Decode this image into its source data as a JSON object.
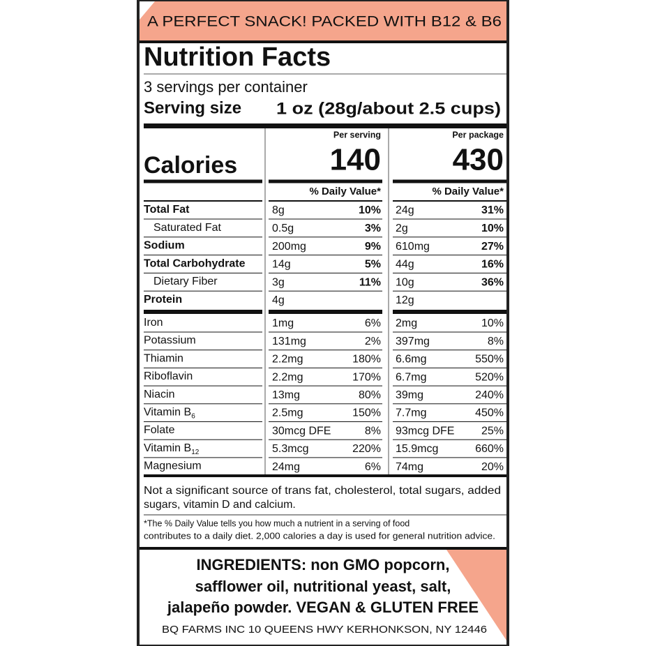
{
  "banner": "A PERFECT SNACK! PACKED WITH B12 & B6",
  "title": "Nutrition Facts",
  "servings": "3 servings per container",
  "serving_size": {
    "label": "Serving size",
    "value": "1 oz (28g/about 2.5 cups)"
  },
  "calories_label": "Calories",
  "columns": [
    {
      "header": "Per serving",
      "calories": "140",
      "dv_header": "% Daily Value*"
    },
    {
      "header": "Per package",
      "calories": "430",
      "dv_header": "% Daily Value*"
    }
  ],
  "macros": [
    {
      "name": "Total Fat",
      "bold": true,
      "cells": [
        [
          "8g",
          "10%"
        ],
        [
          "24g",
          "31%"
        ]
      ]
    },
    {
      "name": "Saturated Fat",
      "indent": true,
      "cells": [
        [
          "0.5g",
          "3%"
        ],
        [
          "2g",
          "10%"
        ]
      ]
    },
    {
      "name": "Sodium",
      "bold": true,
      "cells": [
        [
          "200mg",
          "9%"
        ],
        [
          "610mg",
          "27%"
        ]
      ]
    },
    {
      "name": "Total Carbohydrate",
      "bold": true,
      "cells": [
        [
          "14g",
          "5%"
        ],
        [
          "44g",
          "16%"
        ]
      ]
    },
    {
      "name": "Dietary Fiber",
      "indent": true,
      "cells": [
        [
          "3g",
          "11%"
        ],
        [
          "10g",
          "36%"
        ]
      ]
    },
    {
      "name": "Protein",
      "bold": true,
      "cells": [
        [
          "4g"
        ],
        [
          "12g"
        ]
      ]
    }
  ],
  "micros": [
    {
      "name": "Iron",
      "cells": [
        [
          "1mg",
          "6%"
        ],
        [
          "2mg",
          "10%"
        ]
      ]
    },
    {
      "name": "Potassium",
      "cells": [
        [
          "131mg",
          "2%"
        ],
        [
          "397mg",
          "8%"
        ]
      ]
    },
    {
      "name": "Thiamin",
      "cells": [
        [
          "2.2mg",
          "180%"
        ],
        [
          "6.6mg",
          "550%"
        ]
      ]
    },
    {
      "name": "Riboflavin",
      "cells": [
        [
          "2.2mg",
          "170%"
        ],
        [
          "6.7mg",
          "520%"
        ]
      ]
    },
    {
      "name": "Niacin",
      "cells": [
        [
          "13mg",
          "80%"
        ],
        [
          "39mg",
          "240%"
        ]
      ]
    },
    {
      "name": "Vitamin B",
      "sub": "6",
      "cells": [
        [
          "2.5mg",
          "150%"
        ],
        [
          "7.7mg",
          "450%"
        ]
      ]
    },
    {
      "name": "Folate",
      "cells": [
        [
          "30mcg DFE",
          "8%"
        ],
        [
          "93mcg DFE",
          "25%"
        ]
      ]
    },
    {
      "name": "Vitamin B",
      "sub": "12",
      "cells": [
        [
          "5.3mcg",
          "220%"
        ],
        [
          "15.9mcg",
          "660%"
        ]
      ]
    },
    {
      "name": "Magnesium",
      "cells": [
        [
          "24mg",
          "6%"
        ],
        [
          "74mg",
          "20%"
        ]
      ]
    }
  ],
  "note": [
    "Not a significant source of trans fat, cholesterol, total sugars, added",
    "sugars, vitamin D and calcium."
  ],
  "footnote": [
    "*The % Daily Value tells you how much a nutrient in a serving of food",
    "contributes to a daily diet. 2,000 calories a day is used for general nutrition advice."
  ],
  "ingredients": [
    "INGREDIENTS: non GMO popcorn,",
    "safflower oil, nutritional yeast, salt,",
    "jalapeño powder. VEGAN & GLUTEN FREE"
  ],
  "address": "BQ FARMS INC 10 QUEENS HWY KERHONKSON, NY 12446"
}
